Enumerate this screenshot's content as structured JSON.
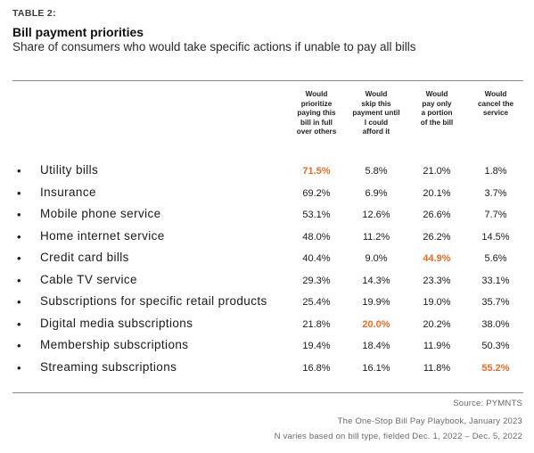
{
  "table_label": "TABLE 2:",
  "title": "Bill payment priorities",
  "subtitle": "Share of consumers who would take specific actions if unable to pay all bills",
  "columns": [
    [
      "Would",
      "prioritize",
      "paying this",
      "bill in full",
      "over others"
    ],
    [
      "Would",
      "skip this",
      "payment until",
      "I could",
      "afford it"
    ],
    [
      "Would",
      "pay only",
      "a portion",
      "of the bill"
    ],
    [
      "Would",
      "cancel the",
      "service"
    ]
  ],
  "highlight_color": "#f26a21",
  "rows": [
    {
      "label": "Utility bills",
      "values": [
        "71.5%",
        "5.8%",
        "21.0%",
        "1.8%"
      ],
      "highlight": 0
    },
    {
      "label": "Insurance",
      "values": [
        "69.2%",
        "6.9%",
        "20.1%",
        "3.7%"
      ],
      "highlight": -1
    },
    {
      "label": "Mobile phone service",
      "values": [
        "53.1%",
        "12.6%",
        "26.6%",
        "7.7%"
      ],
      "highlight": -1
    },
    {
      "label": "Home internet service",
      "values": [
        "48.0%",
        "11.2%",
        "26.2%",
        "14.5%"
      ],
      "highlight": -1
    },
    {
      "label": "Credit card bills",
      "values": [
        "40.4%",
        "9.0%",
        "44.9%",
        "5.6%"
      ],
      "highlight": 2
    },
    {
      "label": "Cable TV service",
      "values": [
        "29.3%",
        "14.3%",
        "23.3%",
        "33.1%"
      ],
      "highlight": -1
    },
    {
      "label": "Subscriptions for specific retail products",
      "values": [
        "25.4%",
        "19.9%",
        "19.0%",
        "35.7%"
      ],
      "highlight": -1
    },
    {
      "label": "Digital media subscriptions",
      "values": [
        "21.8%",
        "20.0%",
        "20.2%",
        "38.0%"
      ],
      "highlight": 1
    },
    {
      "label": "Membership subscriptions",
      "values": [
        "19.4%",
        "18.4%",
        "11.9%",
        "50.3%"
      ],
      "highlight": -1
    },
    {
      "label": "Streaming subscriptions",
      "values": [
        "16.8%",
        "16.1%",
        "11.8%",
        "55.2%"
      ],
      "highlight": 3
    }
  ],
  "source_lines": [
    "Source: PYMNTS",
    "The One-Stop Bill Pay Playbook, January 2023",
    "N varies based on bill type, fielded Dec. 1, 2022 – Dec. 5, 2022"
  ]
}
